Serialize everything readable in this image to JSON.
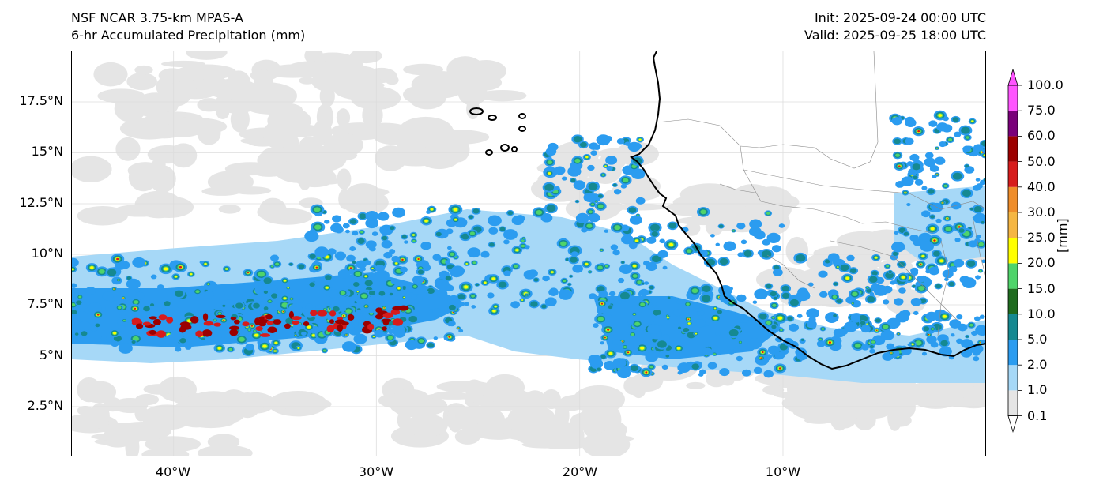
{
  "header": {
    "model_title": "NSF NCAR 3.75-km MPAS-A",
    "field_title": "6-hr Accumulated Precipitation (mm)",
    "init_time": "Init: 2025-09-24 00:00 UTC",
    "valid_time": "Valid: 2025-09-25 18:00 UTC"
  },
  "map": {
    "lat_ticks": [
      "17.5°N",
      "15°N",
      "12.5°N",
      "10°N",
      "7.5°N",
      "5°N",
      "2.5°N"
    ],
    "lon_ticks": [
      "40°W",
      "30°W",
      "20°W",
      "10°W"
    ],
    "lon_range": [
      -45,
      0
    ],
    "lat_range": [
      0,
      20
    ],
    "gridlines": true
  },
  "colorbar": {
    "unit_label": "[mm]",
    "levels": [
      "0.1",
      "1.0",
      "2.0",
      "5.0",
      "10.0",
      "15.0",
      "20.0",
      "25.0",
      "30.0",
      "40.0",
      "50.0",
      "60.0",
      "75.0",
      "100.0"
    ],
    "colors": [
      "#e5e5e5",
      "#a6d8f7",
      "#2b9cf0",
      "#158991",
      "#1e6b1e",
      "#4fd46a",
      "#ffff00",
      "#f5b642",
      "#ef8d2a",
      "#d71c1c",
      "#9c0000",
      "#7a007a",
      "#ff55ff"
    ],
    "extend": "both"
  },
  "colors": {
    "cloud_gray": "#e5e5e5",
    "coast": "#000000",
    "border": "#888888"
  }
}
